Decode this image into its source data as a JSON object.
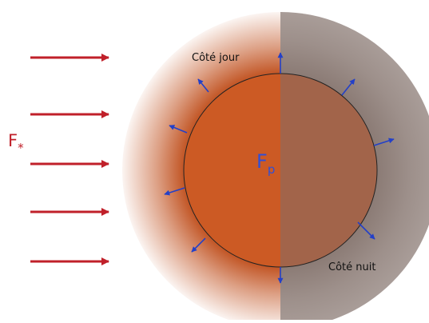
{
  "labels": {
    "stellar_flux": {
      "main": "F",
      "sub": "*"
    },
    "day_side": "Côté jour",
    "night_side": "Côté nuit",
    "planet_flux": {
      "main": "F",
      "sub": "p"
    }
  },
  "colors": {
    "incoming_arrow": "#c0202a",
    "outgoing_arrow": "#2340c8",
    "planet_day": "#cc5a24",
    "planet_night": "#a2644a",
    "atmosphere_day": "#c0501e",
    "atmosphere_night": "#8c7c76",
    "planet_outline": "#222222",
    "text": "#111111",
    "stellar_label": "#c0202a",
    "planet_label": "#2f4fd8"
  }
}
